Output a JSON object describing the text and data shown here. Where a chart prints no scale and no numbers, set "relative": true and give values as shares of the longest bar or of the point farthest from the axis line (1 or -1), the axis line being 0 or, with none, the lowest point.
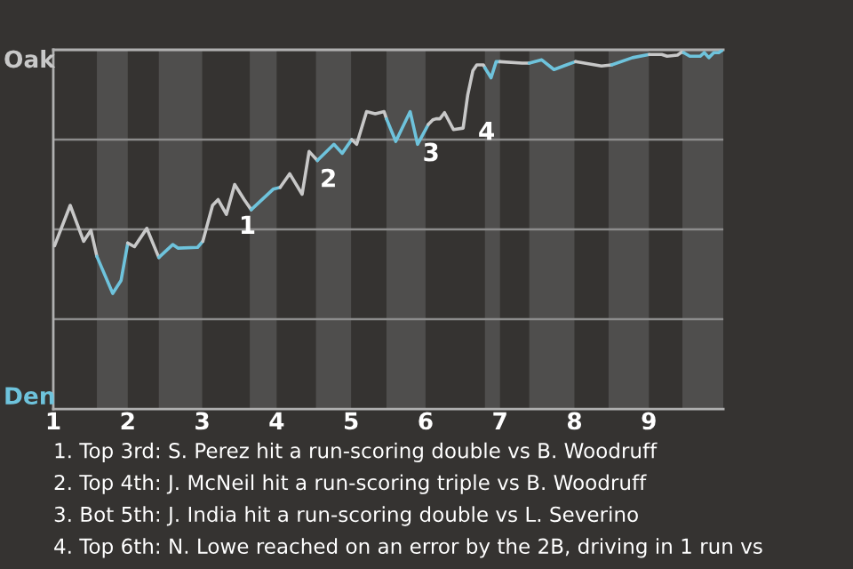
{
  "chart_data": {
    "type": "line",
    "relative": true,
    "xlim": [
      1,
      10
    ],
    "xticks": [
      1,
      2,
      3,
      4,
      5,
      6,
      7,
      8,
      9
    ],
    "grid": "y",
    "marker": "none",
    "line_style": "solid",
    "bands": [
      {
        "axis": "x",
        "from": 1.585,
        "to": 2,
        "color": "#4f4e4d"
      },
      {
        "axis": "x",
        "from": 2.417,
        "to": 3,
        "color": "#4f4e4d"
      },
      {
        "axis": "x",
        "from": 3.639,
        "to": 4,
        "color": "#4f4e4d"
      },
      {
        "axis": "x",
        "from": 4.528,
        "to": 5,
        "color": "#4f4e4d"
      },
      {
        "axis": "x",
        "from": 5.475,
        "to": 6,
        "color": "#4f4e4d"
      },
      {
        "axis": "x",
        "from": 6.797,
        "to": 7,
        "color": "#4f4e4d"
      },
      {
        "axis": "x",
        "from": 7.393,
        "to": 8,
        "color": "#4f4e4d"
      },
      {
        "axis": "x",
        "from": 8.458,
        "to": 9,
        "color": "#4f4e4d"
      },
      {
        "axis": "x",
        "from": 9.45,
        "to": 10,
        "color": "#4f4e4d"
      }
    ],
    "series": [
      {
        "color": "#c8c8c8",
        "x": [
          1.017,
          1.227,
          1.407,
          1.505,
          1.585
        ],
        "values": [
          0.455,
          0.567,
          0.467,
          0.498,
          0.425
        ]
      },
      {
        "color": "#6ec3dc",
        "x": [
          1.585,
          1.798,
          1.91,
          2
        ],
        "values": [
          0.425,
          0.322,
          0.358,
          0.462
        ]
      },
      {
        "color": "#c8c8c8",
        "x": [
          2,
          2.09,
          2.256,
          2.417
        ],
        "values": [
          0.462,
          0.452,
          0.503,
          0.422
        ]
      },
      {
        "color": "#6ec3dc",
        "x": [
          2.417,
          2.604,
          2.673,
          2.938,
          3.008
        ],
        "values": [
          0.422,
          0.458,
          0.448,
          0.45,
          0.467
        ]
      },
      {
        "color": "#c8c8c8",
        "x": [
          3.008,
          3.139,
          3.214,
          3.325,
          3.436,
          3.564,
          3.658
        ],
        "values": [
          0.467,
          0.567,
          0.583,
          0.542,
          0.625,
          0.583,
          0.555
        ]
      },
      {
        "color": "#6ec3dc",
        "x": [
          3.658,
          3.953,
          4.047
        ],
        "values": [
          0.555,
          0.612,
          0.617
        ]
      },
      {
        "color": "#c8c8c8",
        "x": [
          4.047,
          4.175,
          4.342,
          4.436,
          4.547
        ],
        "values": [
          0.617,
          0.655,
          0.598,
          0.717,
          0.692
        ]
      },
      {
        "color": "#6ec3dc",
        "x": [
          4.547,
          4.769,
          4.881,
          5.008
        ],
        "values": [
          0.692,
          0.737,
          0.712,
          0.75
        ]
      },
      {
        "color": "#c8c8c8",
        "x": [
          5.008,
          5.075,
          5.208,
          5.325,
          5.443,
          5.475
        ],
        "values": [
          0.75,
          0.737,
          0.828,
          0.822,
          0.828,
          0.808
        ]
      },
      {
        "color": "#6ec3dc",
        "x": [
          5.475,
          5.6,
          5.793,
          5.893,
          6.036
        ],
        "values": [
          0.808,
          0.745,
          0.828,
          0.737,
          0.792
        ]
      },
      {
        "color": "#c8c8c8",
        "x": [
          6.036,
          6.098,
          6.141,
          6.192,
          6.255,
          6.375,
          6.505,
          6.567,
          6.636,
          6.688,
          6.777,
          6.797
        ],
        "values": [
          0.792,
          0.805,
          0.808,
          0.808,
          0.825,
          0.778,
          0.782,
          0.875,
          0.942,
          0.958,
          0.958,
          0.95
        ]
      },
      {
        "color": "#6ec3dc",
        "x": [
          6.797,
          6.88,
          6.948,
          7
        ],
        "values": [
          0.95,
          0.922,
          0.967,
          0.967
        ]
      },
      {
        "color": "#c8c8c8",
        "x": [
          7,
          7.296,
          7.393
        ],
        "values": [
          0.967,
          0.963,
          0.963
        ]
      },
      {
        "color": "#6ec3dc",
        "x": [
          7.393,
          7.561,
          7.725,
          7.893,
          8.013
        ],
        "values": [
          0.963,
          0.972,
          0.945,
          0.958,
          0.967
        ]
      },
      {
        "color": "#c8c8c8",
        "x": [
          8.013,
          8.363,
          8.5
        ],
        "values": [
          0.967,
          0.955,
          0.958
        ]
      },
      {
        "color": "#6ec3dc",
        "x": [
          8.5,
          8.779,
          9.005
        ],
        "values": [
          0.958,
          0.978,
          0.987
        ]
      },
      {
        "color": "#c8c8c8",
        "x": [
          9.005,
          9.172,
          9.245,
          9.383,
          9.438,
          9.467
        ],
        "values": [
          0.987,
          0.987,
          0.982,
          0.985,
          0.993,
          0.992
        ]
      },
      {
        "color": "#6ec3dc",
        "x": [
          9.467,
          9.55,
          9.688,
          9.745,
          9.805,
          9.872,
          9.938,
          9.995
        ],
        "values": [
          0.992,
          0.982,
          0.982,
          0.992,
          0.978,
          0.992,
          0.992,
          1
        ]
      }
    ],
    "annotations": [
      "Oak",
      "Den",
      {
        "text": "1",
        "x": 3.658,
        "y": 0.555
      },
      {
        "text": "2",
        "x": 4.547,
        "y": 0.692
      },
      {
        "text": "3",
        "x": 5.893,
        "y": 0.737
      },
      {
        "text": "4",
        "x": 6.505,
        "y": 0.782
      },
      "1. Top 3rd: S. Perez hit a run-scoring double vs B. Woodruff",
      "2. Top 4th: J. McNeil hit a run-scoring triple vs B. Woodruff",
      "3. Bot 5th: J. India hit a run-scoring double vs L. Severino",
      "4. Top 6th: N. Lowe reached on an error by the 2B, driving in 1 run vs"
    ]
  }
}
